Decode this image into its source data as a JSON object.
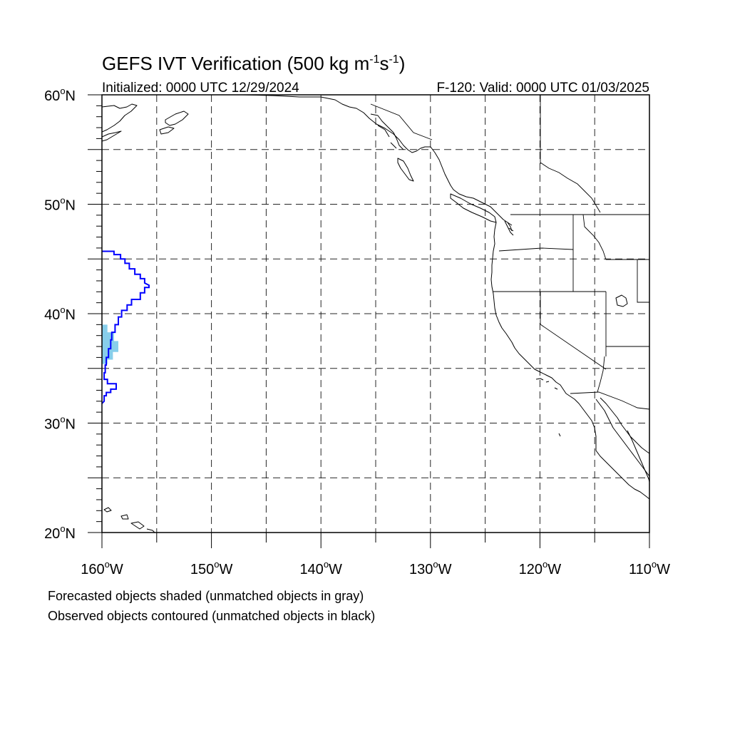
{
  "header": {
    "title_main": "GEFS IVT Verification (500 kg m",
    "title_sup1": "-1",
    "title_mid": "s",
    "title_sup2": "-1",
    "title_end": ")",
    "initialized": "Initialized: 0000 UTC 12/29/2024",
    "valid": "F-120: Valid: 0000 UTC 01/03/2025"
  },
  "map": {
    "projection": "cylindrical equidistant",
    "lon_range": [
      -160,
      -110
    ],
    "lat_range": [
      20,
      60
    ],
    "gridlines": "dashed every 5 degrees",
    "lat_ticks": [
      {
        "value": 60,
        "num": "60",
        "deg": "o",
        "hemi": "N"
      },
      {
        "value": 50,
        "num": "50",
        "deg": "o",
        "hemi": "N"
      },
      {
        "value": 40,
        "num": "40",
        "deg": "o",
        "hemi": "N"
      },
      {
        "value": 30,
        "num": "30",
        "deg": "o",
        "hemi": "N"
      },
      {
        "value": 20,
        "num": "20",
        "deg": "o",
        "hemi": "N"
      }
    ],
    "lon_ticks": [
      {
        "value": -160,
        "num": "160",
        "deg": "o",
        "hemi": "W"
      },
      {
        "value": -150,
        "num": "150",
        "deg": "o",
        "hemi": "W"
      },
      {
        "value": -140,
        "num": "140",
        "deg": "o",
        "hemi": "W"
      },
      {
        "value": -130,
        "num": "130",
        "deg": "o",
        "hemi": "W"
      },
      {
        "value": -120,
        "num": "120",
        "deg": "o",
        "hemi": "W"
      },
      {
        "value": -110,
        "num": "110",
        "deg": "o",
        "hemi": "W"
      }
    ],
    "colors": {
      "forecast_shading": "#87ceeb",
      "observed_contour": "#0000ff",
      "coastline": "#000000"
    },
    "forecast_object": {
      "description_lonlat": [
        [
          -160,
          39
        ],
        [
          -159.5,
          39
        ],
        [
          -159.5,
          38.3
        ],
        [
          -158.9,
          38.3
        ],
        [
          -158.9,
          37.5
        ],
        [
          -158.5,
          37.5
        ],
        [
          -158.5,
          36.5
        ],
        [
          -159,
          36.5
        ],
        [
          -159,
          35.8
        ],
        [
          -159.5,
          35.8
        ],
        [
          -159.5,
          35.4
        ],
        [
          -160,
          35.4
        ]
      ]
    },
    "observed_object": {
      "contour_lonlat": [
        [
          -160,
          45.7
        ],
        [
          -158.9,
          45.7
        ],
        [
          -158.9,
          45.4
        ],
        [
          -158.3,
          45.4
        ],
        [
          -158.3,
          45.0
        ],
        [
          -157.9,
          45.0
        ],
        [
          -157.9,
          44.6
        ],
        [
          -157.5,
          44.6
        ],
        [
          -157.5,
          44.1
        ],
        [
          -157.0,
          44.1
        ],
        [
          -157.0,
          43.6
        ],
        [
          -156.5,
          43.6
        ],
        [
          -156.5,
          43.2
        ],
        [
          -156.1,
          43.2
        ],
        [
          -156.1,
          42.8
        ],
        [
          -155.7,
          42.6
        ],
        [
          -155.7,
          42.4
        ],
        [
          -156.1,
          42.4
        ],
        [
          -156.1,
          41.9
        ],
        [
          -156.5,
          41.9
        ],
        [
          -156.5,
          41.3
        ],
        [
          -157.3,
          41.3
        ],
        [
          -157.3,
          40.8
        ],
        [
          -157.7,
          40.8
        ],
        [
          -157.7,
          40.3
        ],
        [
          -158.2,
          40.3
        ],
        [
          -158.2,
          39.7
        ],
        [
          -158.5,
          39.7
        ],
        [
          -158.5,
          39.0
        ],
        [
          -158.8,
          39.0
        ],
        [
          -158.8,
          38.3
        ],
        [
          -159.1,
          38.3
        ],
        [
          -159.1,
          37.6
        ],
        [
          -159.2,
          37.6
        ],
        [
          -159.2,
          36.8
        ],
        [
          -159.4,
          36.8
        ],
        [
          -159.4,
          36.0
        ],
        [
          -159.6,
          36.0
        ],
        [
          -159.6,
          35.3
        ],
        [
          -159.7,
          35.3
        ],
        [
          -159.7,
          34.6
        ],
        [
          -159.8,
          34.6
        ],
        [
          -159.8,
          34.0
        ],
        [
          -159.5,
          34.0
        ],
        [
          -159.5,
          33.6
        ],
        [
          -158.7,
          33.6
        ],
        [
          -158.7,
          33.1
        ],
        [
          -159.2,
          33.1
        ],
        [
          -159.2,
          32.8
        ],
        [
          -159.6,
          32.8
        ],
        [
          -159.6,
          32.5
        ],
        [
          -159.8,
          32.5
        ],
        [
          -159.8,
          32.0
        ],
        [
          -160,
          31.8
        ]
      ]
    }
  },
  "footer": {
    "note1": "Forecasted objects shaded (unmatched objects in gray)",
    "note2": "Observed objects contoured (unmatched objects in black)"
  }
}
